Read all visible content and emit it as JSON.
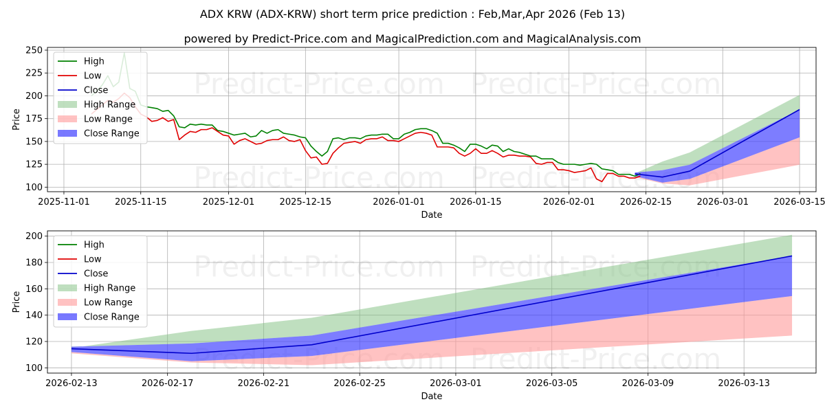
{
  "title": "ADX KRW (ADX-KRW) short term price prediction : Feb,Mar,Apr 2026 (Feb 13)",
  "subtitle": "powered by Predict-Price.com and MagicalPrediction.com and MagicalAnalysis.com",
  "watermark": "Predict-Price.com",
  "colors": {
    "high": "#008000",
    "low": "#e00000",
    "close": "#0000cc",
    "high_range": "#7fbf7f",
    "low_range": "#ff9999",
    "close_range": "#4040ff",
    "grid": "#b0b0b0"
  },
  "chart_data": [
    {
      "type": "line",
      "id": "overview",
      "xlabel": "Date",
      "ylabel": "Price",
      "xlim": [
        "2025-10-29",
        "2026-03-18"
      ],
      "ylim": [
        95,
        253
      ],
      "grid": true,
      "legend_position": "top-left",
      "xticks": [
        {
          "date": "2025-11-01",
          "label": "2025-11-01"
        },
        {
          "date": "2025-11-15",
          "label": "2025-11-15"
        },
        {
          "date": "2025-12-01",
          "label": "2025-12-01"
        },
        {
          "date": "2025-12-15",
          "label": "2025-12-15"
        },
        {
          "date": "2026-01-01",
          "label": "2026-01-01"
        },
        {
          "date": "2026-01-15",
          "label": "2026-01-15"
        },
        {
          "date": "2026-02-01",
          "label": "2026-02-01"
        },
        {
          "date": "2026-02-15",
          "label": "2026-02-15"
        },
        {
          "date": "2026-03-01",
          "label": "2026-03-01"
        },
        {
          "date": "2026-03-15",
          "label": "2026-03-15"
        }
      ],
      "yticks": [
        100,
        125,
        150,
        175,
        200,
        225,
        250
      ],
      "legend": [
        "High",
        "Low",
        "Close",
        "High Range",
        "Low Range",
        "Close Range"
      ],
      "history_start": "2025-11-06",
      "history_high": [
        200,
        205,
        212,
        222,
        210,
        215,
        247,
        208,
        205,
        190,
        188,
        187,
        186,
        183,
        184,
        178,
        166,
        165,
        169,
        168,
        169,
        168,
        168,
        162,
        161,
        159,
        157,
        158,
        159,
        155,
        156,
        162,
        159,
        162,
        163,
        159,
        158,
        157,
        155,
        154,
        145,
        139,
        134,
        139,
        153,
        154,
        152,
        154,
        154,
        153,
        156,
        157,
        157,
        158,
        158,
        153,
        153,
        158,
        160,
        163,
        164,
        164,
        162,
        159,
        148,
        148,
        146,
        143,
        139,
        147,
        147,
        145,
        142,
        146,
        145,
        139,
        142,
        139,
        138,
        136,
        134,
        134,
        131,
        131,
        131,
        127,
        125,
        125,
        125,
        124,
        125,
        126,
        125,
        120,
        119,
        118,
        114,
        114,
        114,
        112,
        115
      ],
      "history_low": [
        180,
        185,
        190,
        195,
        193,
        197,
        203,
        198,
        188,
        180,
        177,
        172,
        173,
        176,
        172,
        174,
        152,
        157,
        161,
        160,
        163,
        163,
        165,
        161,
        157,
        156,
        147,
        151,
        153,
        150,
        147,
        148,
        151,
        152,
        152,
        155,
        151,
        150,
        152,
        140,
        132,
        133,
        125,
        126,
        137,
        143,
        148,
        149,
        150,
        148,
        152,
        153,
        153,
        155,
        151,
        151,
        150,
        153,
        156,
        159,
        160,
        159,
        157,
        144,
        144,
        144,
        143,
        137,
        134,
        137,
        142,
        137,
        137,
        140,
        137,
        133,
        135,
        135,
        134,
        134,
        133,
        126,
        125,
        127,
        127,
        119,
        119,
        118,
        116,
        117,
        118,
        121,
        109,
        106,
        115,
        115,
        112,
        112,
        110,
        110,
        112
      ],
      "forecast_dates": [
        "2026-02-13",
        "2026-02-18",
        "2026-02-23",
        "2026-03-15"
      ],
      "close": [
        114.5,
        111,
        117.5,
        185
      ],
      "close_range_upper": [
        116,
        118.5,
        124.5,
        185
      ],
      "close_range_lower": [
        112,
        105,
        109,
        154.5
      ],
      "high_range_upper": [
        115,
        128,
        138,
        201
      ],
      "low_range_lower": [
        111,
        104,
        102,
        124.5
      ]
    },
    {
      "type": "area",
      "id": "forecast",
      "xlabel": "Date",
      "ylabel": "Price",
      "xlim": [
        "2026-02-12",
        "2026-03-16"
      ],
      "ylim": [
        96,
        204
      ],
      "grid": true,
      "legend_position": "top-left",
      "xticks": [
        {
          "date": "2026-02-13",
          "label": "2026-02-13"
        },
        {
          "date": "2026-02-17",
          "label": "2026-02-17"
        },
        {
          "date": "2026-02-21",
          "label": "2026-02-21"
        },
        {
          "date": "2026-02-25",
          "label": "2026-02-25"
        },
        {
          "date": "2026-03-01",
          "label": "2026-03-01"
        },
        {
          "date": "2026-03-05",
          "label": "2026-03-05"
        },
        {
          "date": "2026-03-09",
          "label": "2026-03-09"
        },
        {
          "date": "2026-03-13",
          "label": "2026-03-13"
        }
      ],
      "yticks": [
        100,
        120,
        140,
        160,
        180,
        200
      ],
      "legend": [
        "High",
        "Low",
        "Close",
        "High Range",
        "Low Range",
        "Close Range"
      ],
      "forecast_dates": [
        "2026-02-13",
        "2026-02-18",
        "2026-02-23",
        "2026-03-15"
      ],
      "close": [
        114.5,
        111,
        117.5,
        185
      ],
      "close_range_upper": [
        116,
        118.5,
        124.5,
        185
      ],
      "close_range_lower": [
        112,
        105,
        109,
        154.5
      ],
      "high_range_upper": [
        115,
        128,
        138,
        201
      ],
      "low_range_lower": [
        111,
        104,
        102,
        124.5
      ]
    }
  ]
}
